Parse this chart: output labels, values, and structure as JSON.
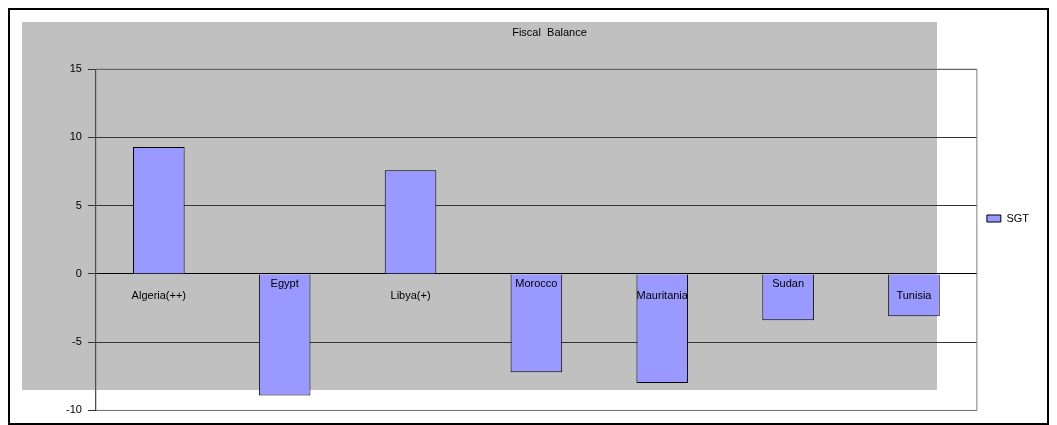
{
  "chart_data": {
    "type": "bar",
    "title": "Fiscal  Balance",
    "categories": [
      "Algeria(++)",
      "Egypt",
      "Libya(+)",
      "Morocco",
      "Mauritania",
      "Sudan",
      "Tunisia"
    ],
    "series": [
      {
        "name": "SGT",
        "color": "#9999ff",
        "values": [
          9.3,
          -8.9,
          7.6,
          -7.2,
          -8.0,
          -3.4,
          -3.1
        ]
      }
    ],
    "ylim": [
      -10,
      15
    ],
    "yticks": [
      -10,
      -5,
      0,
      5,
      10,
      15
    ],
    "grid": "y",
    "legend": "right"
  }
}
